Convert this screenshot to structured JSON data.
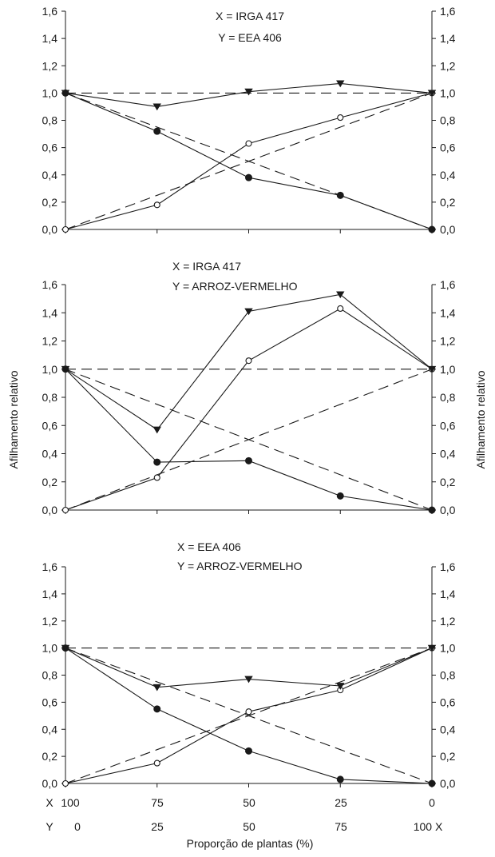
{
  "y_axis_title_left": "Afilhamento relativo",
  "y_axis_title_right": "Afilhamento relativo",
  "x_axis_title": "Proporção de plantas (%)",
  "x_row_label": "X",
  "y_row_label": "Y",
  "x_row_values": [
    "100",
    "75",
    "50",
    "25",
    "0"
  ],
  "y_row_values": [
    "0",
    "25",
    "50",
    "75",
    "100 X"
  ],
  "chart_data": [
    {
      "type": "line",
      "title_lines": [
        "X = IRGA 417",
        "Y = EEA 406"
      ],
      "x": [
        100,
        75,
        50,
        25,
        0
      ],
      "ylim": [
        0,
        1.6
      ],
      "yticks": [
        "0,0",
        "0,2",
        "0,4",
        "0,6",
        "0,8",
        "1,0",
        "1,2",
        "1,4",
        "1,6"
      ],
      "series": [
        {
          "marker": "filled-circle",
          "values": [
            1.0,
            0.72,
            0.38,
            0.25,
            0.0
          ]
        },
        {
          "marker": "open-circle",
          "values": [
            0.0,
            0.18,
            0.63,
            0.82,
            1.0
          ]
        },
        {
          "marker": "filled-triangle-down",
          "values": [
            1.0,
            0.9,
            1.01,
            1.07,
            1.0
          ]
        }
      ],
      "reference_lines": [
        {
          "style": "dashed",
          "values": [
            1.0,
            0.75,
            0.5,
            0.25,
            0.0
          ]
        },
        {
          "style": "dashed",
          "values": [
            0.0,
            0.25,
            0.5,
            0.75,
            1.0
          ]
        },
        {
          "style": "dashed",
          "values": [
            1.0,
            1.0,
            1.0,
            1.0,
            1.0
          ]
        }
      ]
    },
    {
      "type": "line",
      "title_lines": [
        "X = IRGA 417",
        "Y = ARROZ-VERMELHO"
      ],
      "x": [
        100,
        75,
        50,
        25,
        0
      ],
      "ylim": [
        0,
        1.6
      ],
      "yticks": [
        "0,0",
        "0,2",
        "0,4",
        "0,6",
        "0,8",
        "1,0",
        "1,2",
        "1,4",
        "1,6"
      ],
      "series": [
        {
          "marker": "filled-circle",
          "values": [
            1.0,
            0.34,
            0.35,
            0.1,
            0.0
          ]
        },
        {
          "marker": "open-circle",
          "values": [
            0.0,
            0.23,
            1.06,
            1.43,
            1.0
          ]
        },
        {
          "marker": "filled-triangle-down",
          "values": [
            1.0,
            0.57,
            1.41,
            1.53,
            1.0
          ]
        }
      ],
      "reference_lines": [
        {
          "style": "dashed",
          "values": [
            1.0,
            0.75,
            0.5,
            0.25,
            0.0
          ]
        },
        {
          "style": "dashed",
          "values": [
            0.0,
            0.25,
            0.5,
            0.75,
            1.0
          ]
        },
        {
          "style": "dashed",
          "values": [
            1.0,
            1.0,
            1.0,
            1.0,
            1.0
          ]
        }
      ]
    },
    {
      "type": "line",
      "title_lines": [
        "X = EEA 406",
        "Y = ARROZ-VERMELHO"
      ],
      "x": [
        100,
        75,
        50,
        25,
        0
      ],
      "ylim": [
        0,
        1.6
      ],
      "yticks": [
        "0,0",
        "0,2",
        "0,4",
        "0,6",
        "0,8",
        "1,0",
        "1,2",
        "1,4",
        "1,6"
      ],
      "series": [
        {
          "marker": "filled-circle",
          "values": [
            1.0,
            0.55,
            0.24,
            0.03,
            0.0
          ]
        },
        {
          "marker": "open-circle",
          "values": [
            0.0,
            0.15,
            0.53,
            0.69,
            1.0
          ]
        },
        {
          "marker": "filled-triangle-down",
          "values": [
            1.0,
            0.71,
            0.77,
            0.72,
            1.0
          ]
        }
      ],
      "reference_lines": [
        {
          "style": "dashed",
          "values": [
            1.0,
            0.75,
            0.5,
            0.25,
            0.0
          ]
        },
        {
          "style": "dashed",
          "values": [
            0.0,
            0.25,
            0.5,
            0.75,
            1.0
          ]
        },
        {
          "style": "dashed",
          "values": [
            1.0,
            1.0,
            1.0,
            1.0,
            1.0
          ]
        }
      ]
    }
  ]
}
